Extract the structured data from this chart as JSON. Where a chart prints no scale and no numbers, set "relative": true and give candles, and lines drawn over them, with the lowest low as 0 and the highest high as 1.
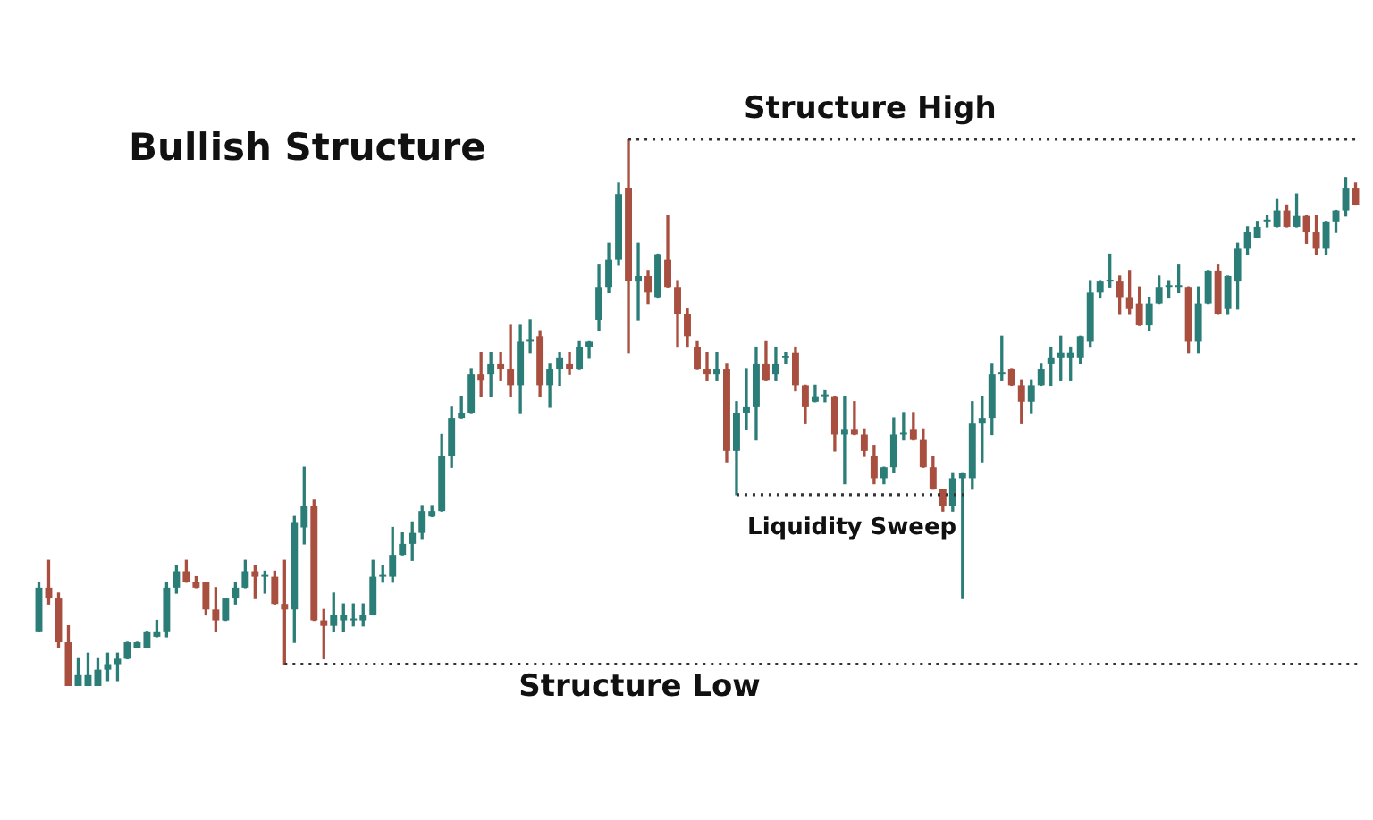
{
  "chart_data": {
    "type": "candlestick",
    "title": "Bullish Structure",
    "relative": true,
    "categories": [
      null,
      null,
      null,
      null,
      null,
      null,
      null,
      null,
      null,
      null,
      null,
      null,
      null,
      null,
      null,
      null,
      null,
      null,
      null,
      null,
      null,
      null,
      null,
      null,
      null,
      null,
      null,
      null,
      null,
      null,
      null,
      null,
      null,
      null,
      null,
      null,
      null,
      null,
      null,
      null,
      null,
      null,
      null,
      null,
      null,
      null,
      null,
      null,
      null,
      null,
      null,
      null,
      null,
      null,
      null,
      null,
      null,
      null,
      null,
      null,
      null,
      null,
      null,
      null,
      null,
      null,
      null,
      null,
      null,
      null,
      null,
      null,
      null,
      null,
      null,
      null,
      null,
      null,
      null,
      null,
      null,
      null,
      null,
      null,
      null,
      null,
      null,
      null,
      null,
      null,
      null,
      null,
      null,
      null,
      null,
      null,
      null,
      null,
      null,
      null,
      null,
      null,
      null,
      null,
      null,
      null,
      null,
      null,
      null,
      null,
      null,
      null,
      null,
      null,
      null,
      null,
      null,
      null,
      null,
      null,
      null,
      null,
      null,
      null,
      null,
      null,
      null,
      null,
      null,
      null,
      null,
      null,
      null,
      null,
      null
    ],
    "ohlc": [
      [
        0.1,
        0.19,
        0.1,
        0.18
      ],
      [
        0.18,
        0.23,
        0.15,
        0.16
      ],
      [
        0.16,
        0.17,
        0.07,
        0.08
      ],
      [
        0.08,
        0.11,
        0,
        0
      ],
      [
        0,
        0.05,
        0,
        0.02
      ],
      [
        0,
        0.06,
        0,
        0.02
      ],
      [
        0,
        0.05,
        0,
        0.03
      ],
      [
        0.03,
        0.06,
        0.01,
        0.04
      ],
      [
        0.04,
        0.06,
        0.01,
        0.05
      ],
      [
        0.05,
        0.08,
        0.05,
        0.08
      ],
      [
        0.07,
        0.08,
        0.07,
        0.08
      ],
      [
        0.07,
        0.1,
        0.07,
        0.1
      ],
      [
        0.09,
        0.12,
        0.09,
        0.1
      ],
      [
        0.1,
        0.19,
        0.09,
        0.18
      ],
      [
        0.18,
        0.22,
        0.17,
        0.21
      ],
      [
        0.21,
        0.23,
        0.19,
        0.19
      ],
      [
        0.19,
        0.2,
        0.18,
        0.18
      ],
      [
        0.19,
        0.19,
        0.13,
        0.14
      ],
      [
        0.14,
        0.18,
        0.1,
        0.12
      ],
      [
        0.12,
        0.16,
        0.12,
        0.16
      ],
      [
        0.16,
        0.19,
        0.15,
        0.18
      ],
      [
        0.18,
        0.23,
        0.18,
        0.21
      ],
      [
        0.21,
        0.22,
        0.16,
        0.2
      ],
      [
        0.2,
        0.21,
        0.17,
        0.2
      ],
      [
        0.2,
        0.21,
        0.15,
        0.15
      ],
      [
        0.15,
        0.23,
        0.04,
        0.14
      ],
      [
        0.14,
        0.31,
        0.08,
        0.3
      ],
      [
        0.29,
        0.4,
        0.26,
        0.33
      ],
      [
        0.33,
        0.34,
        0.12,
        0.12
      ],
      [
        0.12,
        0.14,
        0.05,
        0.11
      ],
      [
        0.11,
        0.17,
        0.1,
        0.13
      ],
      [
        0.12,
        0.15,
        0.1,
        0.13
      ],
      [
        0.12,
        0.15,
        0.11,
        0.12
      ],
      [
        0.12,
        0.15,
        0.11,
        0.13
      ],
      [
        0.13,
        0.23,
        0.13,
        0.2
      ],
      [
        0.2,
        0.22,
        0.19,
        0.2
      ],
      [
        0.2,
        0.29,
        0.19,
        0.24
      ],
      [
        0.24,
        0.28,
        0.24,
        0.26
      ],
      [
        0.26,
        0.3,
        0.23,
        0.28
      ],
      [
        0.28,
        0.33,
        0.27,
        0.32
      ],
      [
        0.31,
        0.33,
        0.31,
        0.32
      ],
      [
        0.32,
        0.46,
        0.32,
        0.42
      ],
      [
        0.42,
        0.51,
        0.4,
        0.49
      ],
      [
        0.49,
        0.53,
        0.49,
        0.5
      ],
      [
        0.5,
        0.58,
        0.5,
        0.57
      ],
      [
        0.57,
        0.61,
        0.53,
        0.56
      ],
      [
        0.57,
        0.61,
        0.53,
        0.59
      ],
      [
        0.59,
        0.61,
        0.56,
        0.58
      ],
      [
        0.58,
        0.66,
        0.53,
        0.55
      ],
      [
        0.55,
        0.66,
        0.5,
        0.63
      ],
      [
        0.63,
        0.67,
        0.61,
        0.63
      ],
      [
        0.64,
        0.65,
        0.53,
        0.55
      ],
      [
        0.55,
        0.59,
        0.51,
        0.58
      ],
      [
        0.58,
        0.61,
        0.55,
        0.6
      ],
      [
        0.59,
        0.61,
        0.57,
        0.58
      ],
      [
        0.58,
        0.63,
        0.58,
        0.62
      ],
      [
        0.62,
        0.63,
        0.6,
        0.63
      ],
      [
        0.67,
        0.77,
        0.65,
        0.73
      ],
      [
        0.73,
        0.81,
        0.72,
        0.78
      ],
      [
        0.78,
        0.92,
        0.77,
        0.9
      ],
      [
        0.91,
        1,
        0.61,
        0.74
      ],
      [
        0.74,
        0.81,
        0.67,
        0.75
      ],
      [
        0.75,
        0.76,
        0.7,
        0.72
      ],
      [
        0.71,
        0.79,
        0.71,
        0.79
      ],
      [
        0.78,
        0.86,
        0.73,
        0.73
      ],
      [
        0.73,
        0.74,
        0.62,
        0.68
      ],
      [
        0.68,
        0.69,
        0.62,
        0.64
      ],
      [
        0.62,
        0.63,
        0.58,
        0.58
      ],
      [
        0.58,
        0.61,
        0.56,
        0.57
      ],
      [
        0.57,
        0.61,
        0.56,
        0.58
      ],
      [
        0.58,
        0.59,
        0.41,
        0.43
      ],
      [
        0.43,
        0.52,
        0.35,
        0.5
      ],
      [
        0.5,
        0.58,
        0.47,
        0.51
      ],
      [
        0.51,
        0.62,
        0.45,
        0.59
      ],
      [
        0.59,
        0.63,
        0.56,
        0.56
      ],
      [
        0.57,
        0.62,
        0.56,
        0.59
      ],
      [
        0.6,
        0.61,
        0.59,
        0.6
      ],
      [
        0.61,
        0.62,
        0.54,
        0.55
      ],
      [
        0.55,
        0.55,
        0.48,
        0.51
      ],
      [
        0.52,
        0.55,
        0.52,
        0.53
      ],
      [
        0.53,
        0.54,
        0.52,
        0.53
      ],
      [
        0.53,
        0.53,
        0.43,
        0.46
      ],
      [
        0.46,
        0.53,
        0.37,
        0.47
      ],
      [
        0.47,
        0.52,
        0.46,
        0.46
      ],
      [
        0.46,
        0.47,
        0.42,
        0.43
      ],
      [
        0.42,
        0.44,
        0.37,
        0.38
      ],
      [
        0.38,
        0.4,
        0.37,
        0.4
      ],
      [
        0.4,
        0.49,
        0.39,
        0.46
      ],
      [
        0.46,
        0.5,
        0.45,
        0.46
      ],
      [
        0.47,
        0.5,
        0.45,
        0.45
      ],
      [
        0.45,
        0.47,
        0.4,
        0.4
      ],
      [
        0.4,
        0.42,
        0.36,
        0.36
      ],
      [
        0.36,
        0.36,
        0.32,
        0.33
      ],
      [
        0.33,
        0.39,
        0.32,
        0.38
      ],
      [
        0.38,
        0.39,
        0.16,
        0.39
      ],
      [
        0.38,
        0.52,
        0.36,
        0.48
      ],
      [
        0.48,
        0.53,
        0.41,
        0.49
      ],
      [
        0.49,
        0.59,
        0.46,
        0.57
      ],
      [
        0.57,
        0.64,
        0.56,
        0.57
      ],
      [
        0.58,
        0.58,
        0.55,
        0.55
      ],
      [
        0.55,
        0.56,
        0.48,
        0.52
      ],
      [
        0.52,
        0.56,
        0.5,
        0.55
      ],
      [
        0.55,
        0.59,
        0.55,
        0.58
      ],
      [
        0.59,
        0.62,
        0.55,
        0.6
      ],
      [
        0.6,
        0.64,
        0.56,
        0.61
      ],
      [
        0.6,
        0.62,
        0.56,
        0.61
      ],
      [
        0.6,
        0.64,
        0.59,
        0.64
      ],
      [
        0.63,
        0.74,
        0.62,
        0.72
      ],
      [
        0.72,
        0.74,
        0.71,
        0.74
      ],
      [
        0.74,
        0.79,
        0.73,
        0.74
      ],
      [
        0.74,
        0.75,
        0.68,
        0.71
      ],
      [
        0.71,
        0.76,
        0.68,
        0.69
      ],
      [
        0.7,
        0.73,
        0.66,
        0.66
      ],
      [
        0.66,
        0.71,
        0.65,
        0.7
      ],
      [
        0.7,
        0.75,
        0.7,
        0.73
      ],
      [
        0.73,
        0.74,
        0.71,
        0.73
      ],
      [
        0.73,
        0.77,
        0.72,
        0.73
      ],
      [
        0.73,
        0.73,
        0.61,
        0.63
      ],
      [
        0.63,
        0.73,
        0.61,
        0.7
      ],
      [
        0.7,
        0.76,
        0.7,
        0.76
      ],
      [
        0.76,
        0.77,
        0.68,
        0.68
      ],
      [
        0.69,
        0.75,
        0.68,
        0.75
      ],
      [
        0.74,
        0.81,
        0.69,
        0.8
      ],
      [
        0.8,
        0.84,
        0.79,
        0.83
      ],
      [
        0.82,
        0.85,
        0.82,
        0.84
      ],
      [
        0.85,
        0.86,
        0.84,
        0.85
      ],
      [
        0.84,
        0.89,
        0.84,
        0.87
      ],
      [
        0.87,
        0.88,
        0.84,
        0.84
      ],
      [
        0.84,
        0.9,
        0.84,
        0.86
      ],
      [
        0.86,
        0.86,
        0.81,
        0.83
      ],
      [
        0.83,
        0.86,
        0.79,
        0.8
      ],
      [
        0.8,
        0.85,
        0.79,
        0.85
      ],
      [
        0.85,
        0.87,
        0.83,
        0.87
      ],
      [
        0.87,
        0.93,
        0.86,
        0.91
      ],
      [
        0.91,
        0.92,
        0.88,
        0.88
      ]
    ],
    "colors": [
      "#2b7d77",
      "#a84f3f",
      "#a84f3f",
      "#a84f3f",
      "#2b7d77",
      "#2b7d77",
      "#2b7d77",
      "#2b7d77",
      "#2b7d77",
      "#2b7d77",
      "#2b7d77",
      "#2b7d77",
      "#2b7d77",
      "#2b7d77",
      "#2b7d77",
      "#a84f3f",
      "#a84f3f",
      "#a84f3f",
      "#a84f3f",
      "#2b7d77",
      "#2b7d77",
      "#2b7d77",
      "#a84f3f",
      "#2b7d77",
      "#a84f3f",
      "#a84f3f",
      "#2b7d77",
      "#2b7d77",
      "#a84f3f",
      "#a84f3f",
      "#2b7d77",
      "#2b7d77",
      "#2b7d77",
      "#2b7d77",
      "#2b7d77",
      "#2b7d77",
      "#2b7d77",
      "#2b7d77",
      "#2b7d77",
      "#2b7d77",
      "#2b7d77",
      "#2b7d77",
      "#2b7d77",
      "#2b7d77",
      "#2b7d77",
      "#a84f3f",
      "#2b7d77",
      "#a84f3f",
      "#a84f3f",
      "#2b7d77",
      "#2b7d77",
      "#a84f3f",
      "#2b7d77",
      "#2b7d77",
      "#a84f3f",
      "#2b7d77",
      "#2b7d77",
      "#2b7d77",
      "#2b7d77",
      "#2b7d77",
      "#a84f3f",
      "#2b7d77",
      "#a84f3f",
      "#2b7d77",
      "#a84f3f",
      "#a84f3f",
      "#a84f3f",
      "#a84f3f",
      "#a84f3f",
      "#2b7d77",
      "#a84f3f",
      "#2b7d77",
      "#2b7d77",
      "#2b7d77",
      "#a84f3f",
      "#2b7d77",
      "#2b7d77",
      "#a84f3f",
      "#a84f3f",
      "#2b7d77",
      "#2b7d77",
      "#a84f3f",
      "#2b7d77",
      "#a84f3f",
      "#a84f3f",
      "#a84f3f",
      "#2b7d77",
      "#2b7d77",
      "#2b7d77",
      "#a84f3f",
      "#a84f3f",
      "#a84f3f",
      "#a84f3f",
      "#2b7d77",
      "#2b7d77",
      "#2b7d77",
      "#2b7d77",
      "#2b7d77",
      "#2b7d77",
      "#a84f3f",
      "#a84f3f",
      "#2b7d77",
      "#2b7d77",
      "#2b7d77",
      "#2b7d77",
      "#2b7d77",
      "#2b7d77",
      "#2b7d77",
      "#2b7d77",
      "#2b7d77",
      "#a84f3f",
      "#a84f3f",
      "#a84f3f",
      "#2b7d77",
      "#2b7d77",
      "#2b7d77",
      "#2b7d77",
      "#a84f3f",
      "#2b7d77",
      "#2b7d77",
      "#a84f3f",
      "#2b7d77",
      "#2b7d77",
      "#2b7d77",
      "#2b7d77",
      "#2b7d77",
      "#2b7d77",
      "#a84f3f",
      "#2b7d77",
      "#a84f3f",
      "#a84f3f",
      "#2b7d77",
      "#2b7d77",
      "#2b7d77",
      "#a84f3f"
    ],
    "ref_lines": [
      {
        "axis": "y",
        "value": 1,
        "label": "Structure High",
        "line_style": "dotted",
        "color": "#333333"
      },
      {
        "axis": "y",
        "value": 0.04,
        "label": "Structure Low",
        "line_style": "dotted",
        "color": "#333333"
      },
      {
        "axis": "y",
        "value": 0.35,
        "label": "Liquidity Sweep",
        "line_style": "dotted",
        "color": "#333333"
      }
    ]
  }
}
